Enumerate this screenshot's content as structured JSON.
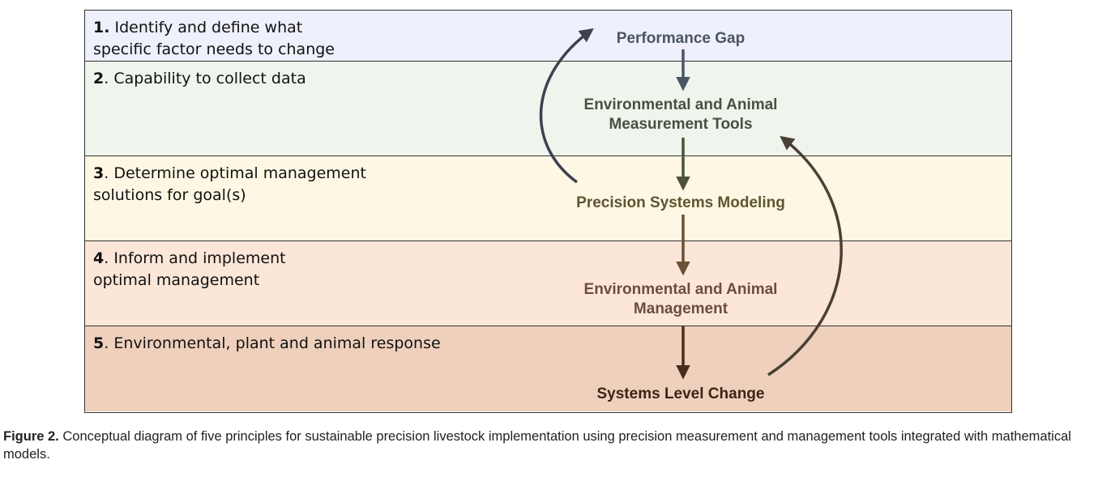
{
  "bands": [
    {
      "number": "1.",
      "text": "Identify and define what specific factor needs to change",
      "color": "#eef0fb"
    },
    {
      "number": "2",
      "text": ". Capability to collect data",
      "color": "#eff4ec"
    },
    {
      "number": "3",
      "text": ". Determine optimal management solutions for goal(s)",
      "color": "#fdf7e4"
    },
    {
      "number": "4",
      "text": ". Inform and implement optimal management",
      "color": "#fbe6d8"
    },
    {
      "number": "5",
      "text": ". Environmental, plant and animal response",
      "color": "#efd0bc"
    }
  ],
  "nodes": {
    "performance_gap": {
      "label": "Performance Gap",
      "color": "#4a5566"
    },
    "measurement_tools": {
      "label": "Environmental and Animal Measurement Tools",
      "color": "#4a5040"
    },
    "systems_modeling": {
      "label": "Precision Systems Modeling",
      "color": "#5e5530"
    },
    "management": {
      "label": "Environmental and Animal Management",
      "color": "#6a4e3c"
    },
    "systems_level_change": {
      "label": "Systems Level Change",
      "color": "#3f2414"
    }
  },
  "caption": {
    "label": "Figure 2.",
    "text": " Conceptual diagram of five principles for sustainable precision livestock implementation using precision measurement and management tools integrated with mathematical models."
  }
}
